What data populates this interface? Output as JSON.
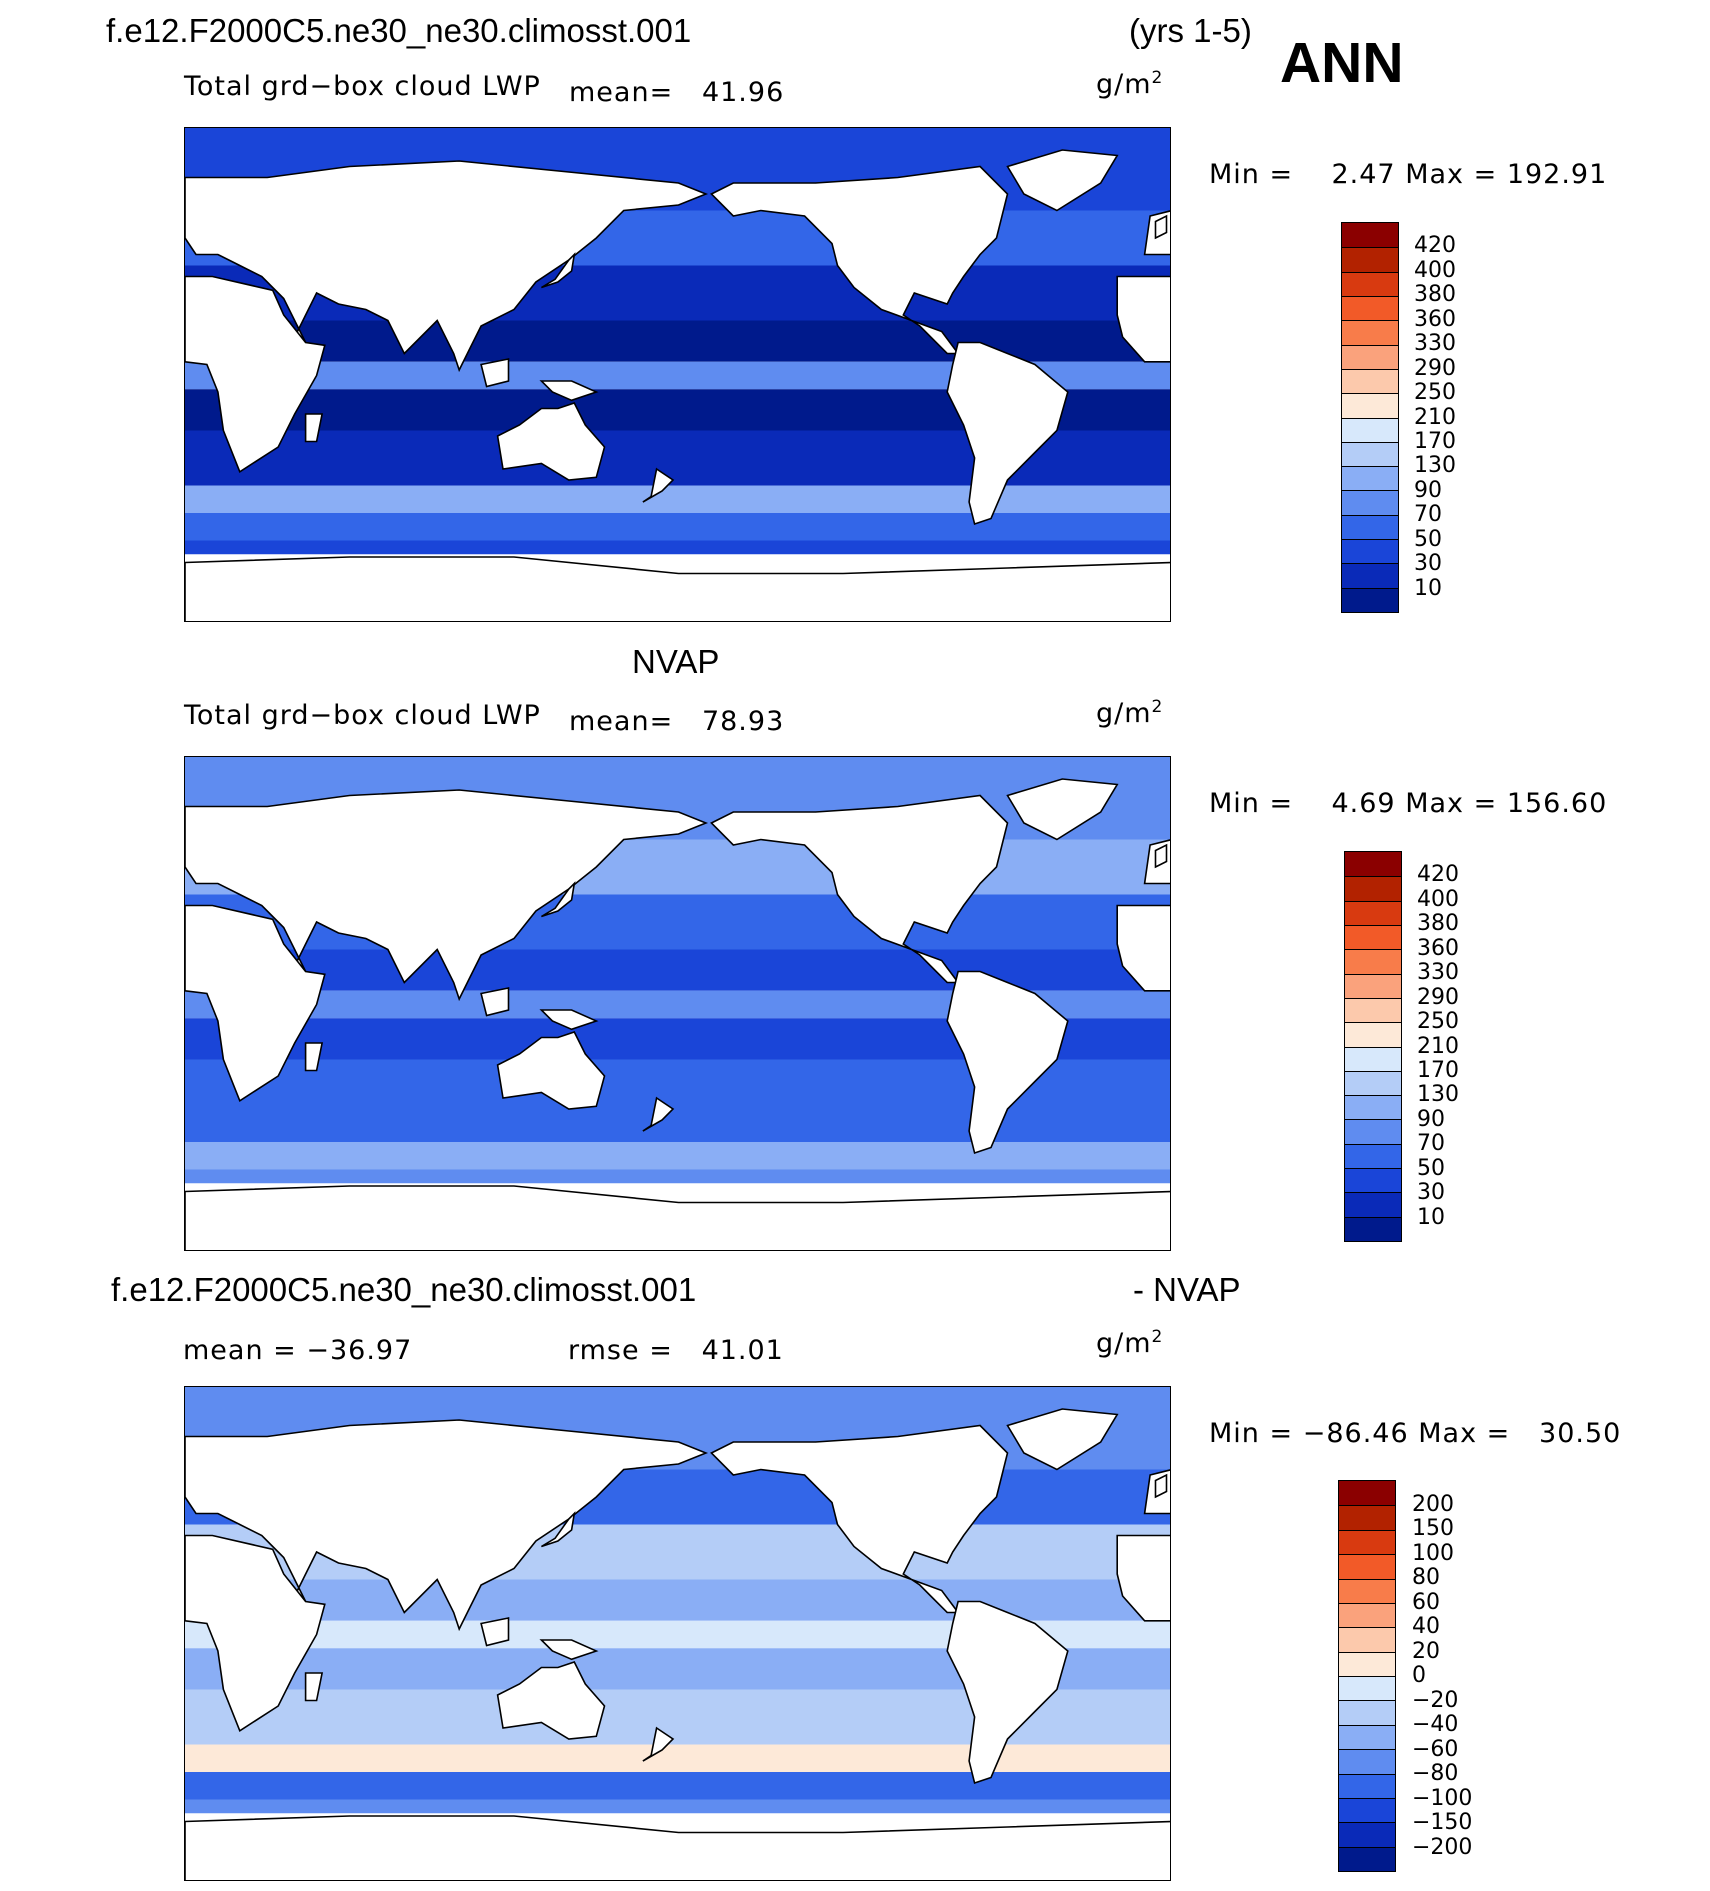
{
  "season": "ANN",
  "header": {
    "case_name": "f.e12.F2000C5.ne30_ne30.climosst.001",
    "years": "(yrs 1-5)"
  },
  "units_base": "g/m",
  "units_exp": "2",
  "panels": [
    {
      "id": "model",
      "subtitle": "",
      "variable": "Total grd−box cloud LWP",
      "mean_label": "mean=",
      "mean_value": "41.96",
      "min_label": "Min =",
      "min_value": "2.47",
      "max_label": "Max =",
      "max_value": "192.91",
      "colorbar": {
        "ticks": [
          "420",
          "400",
          "380",
          "360",
          "330",
          "290",
          "250",
          "210",
          "170",
          "130",
          "90",
          "70",
          "50",
          "30",
          "10"
        ],
        "colors": [
          "#8b0000",
          "#b22200",
          "#d83a10",
          "#f25a28",
          "#f87c4a",
          "#faa27c",
          "#fcc9ac",
          "#fde9d8",
          "#d7e8fb",
          "#b4cdf7",
          "#8aaef5",
          "#5f8cf0",
          "#3366e8",
          "#1a45d8",
          "#0a2ab8",
          "#001a8c"
        ]
      },
      "palette": [
        "#001a8c",
        "#0a2ab8",
        "#1a45d8",
        "#3366e8",
        "#5f8cf0",
        "#8aaef5"
      ]
    },
    {
      "id": "obs",
      "subtitle": "NVAP",
      "variable": "Total grd−box cloud LWP",
      "mean_label": "mean=",
      "mean_value": "78.93",
      "min_label": "Min =",
      "min_value": "4.69",
      "max_label": "Max =",
      "max_value": "156.60",
      "colorbar": {
        "ticks": [
          "420",
          "400",
          "380",
          "360",
          "330",
          "290",
          "250",
          "210",
          "170",
          "130",
          "90",
          "70",
          "50",
          "30",
          "10"
        ],
        "colors": [
          "#8b0000",
          "#b22200",
          "#d83a10",
          "#f25a28",
          "#f87c4a",
          "#faa27c",
          "#fcc9ac",
          "#fde9d8",
          "#d7e8fb",
          "#b4cdf7",
          "#8aaef5",
          "#5f8cf0",
          "#3366e8",
          "#1a45d8",
          "#0a2ab8",
          "#001a8c"
        ]
      },
      "palette": [
        "#1a45d8",
        "#3366e8",
        "#5f8cf0",
        "#8aaef5",
        "#5f8cf0",
        "#3366e8"
      ]
    },
    {
      "id": "diff",
      "subtitle_left": "f.e12.F2000C5.ne30_ne30.climosst.001",
      "subtitle_right": "- NVAP",
      "mean_label": "mean =",
      "mean_value": "−36.97",
      "rmse_label": "rmse =",
      "rmse_value": "41.01",
      "min_label": "Min =",
      "min_value": "−86.46",
      "max_label": "Max =",
      "max_value": "30.50",
      "colorbar": {
        "ticks": [
          "200",
          "150",
          "100",
          "80",
          "60",
          "40",
          "20",
          "0",
          "−20",
          "−40",
          "−60",
          "−80",
          "−100",
          "−150",
          "−200"
        ],
        "colors": [
          "#8b0000",
          "#b22200",
          "#d83a10",
          "#f25a28",
          "#f87c4a",
          "#faa27c",
          "#fcc9ac",
          "#fde9d8",
          "#d7e8fb",
          "#b4cdf7",
          "#8aaef5",
          "#5f8cf0",
          "#3366e8",
          "#1a45d8",
          "#0a2ab8",
          "#001a8c"
        ]
      },
      "palette": [
        "#8aaef5",
        "#b4cdf7",
        "#5f8cf0",
        "#3366e8",
        "#d7e8fb",
        "#fde9d8"
      ]
    }
  ]
}
